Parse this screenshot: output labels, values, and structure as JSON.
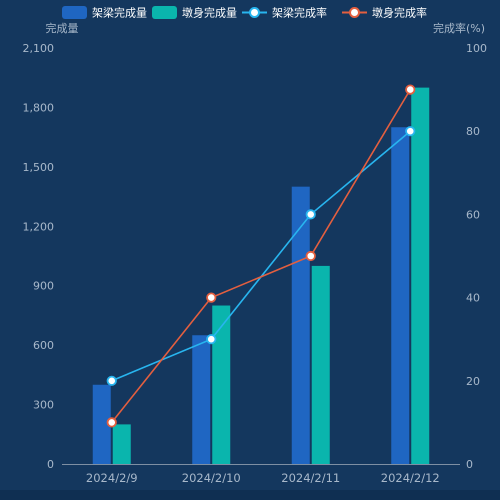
{
  "colors": {
    "background": "#14375e",
    "bridge_bar": "#1f66c2",
    "pier_bar": "#0ab5ad",
    "bridge_rate_line": "#28b5ef",
    "pier_rate_line": "#e45f3f",
    "axis_text": "#a8b8ca",
    "legend_text": "#ffffff"
  },
  "chart_data": {
    "type": "bar",
    "categories": [
      "2024/2/9",
      "2024/2/10",
      "2024/2/11",
      "2024/2/12"
    ],
    "series": [
      {
        "name": "架梁完成量",
        "type": "bar",
        "axis": "left",
        "values": [
          400,
          650,
          1400,
          1700
        ]
      },
      {
        "name": "墩身完成量",
        "type": "bar",
        "axis": "left",
        "values": [
          200,
          800,
          1000,
          1900
        ]
      },
      {
        "name": "架梁完成率",
        "type": "line",
        "axis": "right",
        "values": [
          20,
          30,
          60,
          80
        ]
      },
      {
        "name": "墩身完成率",
        "type": "line",
        "axis": "right",
        "values": [
          10,
          40,
          50,
          90
        ]
      }
    ],
    "ylabel": "完成量",
    "y2label": "完成率(%)",
    "ylim": [
      0,
      2100
    ],
    "yticks": [
      "0",
      "300",
      "600",
      "900",
      "1,200",
      "1,500",
      "1,800",
      "2,100"
    ],
    "y2lim": [
      0,
      100
    ],
    "y2ticks": [
      "0",
      "20",
      "40",
      "60",
      "80",
      "100"
    ],
    "legend_position": "top",
    "grid": false
  }
}
